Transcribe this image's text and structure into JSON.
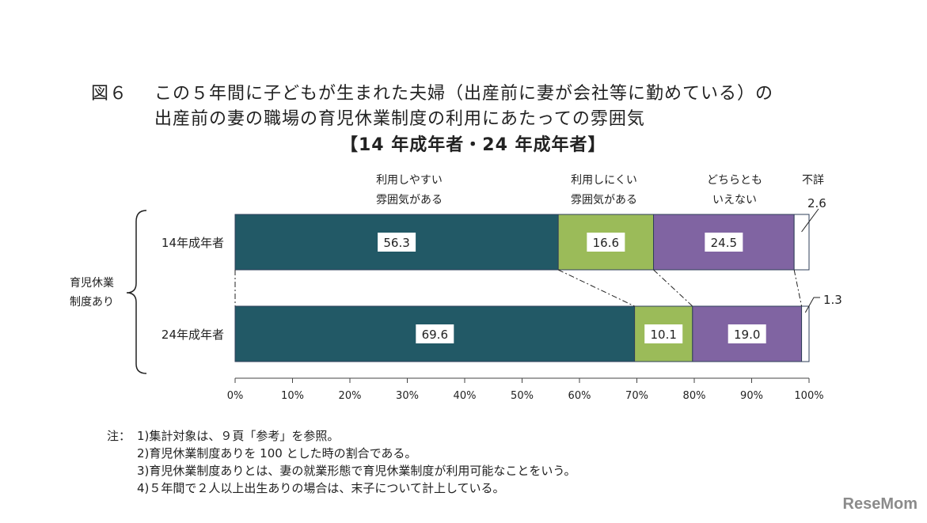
{
  "title": {
    "fig_label": "図６",
    "line1": "この５年間に子どもが生まれた夫婦（出産前に妻が会社等に勤めている）の",
    "line2": "出産前の妻の職場の育児休業制度の利用にあたっての雰囲気",
    "line3": "【14 年成年者・24 年成年者】"
  },
  "chart_data": {
    "type": "bar",
    "orientation": "horizontal",
    "stacked": true,
    "group_label": [
      "育児休業",
      "制度あり"
    ],
    "categories": [
      "14年成年者",
      "24年成年者"
    ],
    "series": [
      {
        "name": "利用しやすい雰囲気がある",
        "name_lines": [
          "利用しやすい",
          "雰囲気がある"
        ],
        "color": "#225966",
        "values": [
          56.3,
          69.6
        ],
        "labels": [
          "56.3",
          "69.6"
        ]
      },
      {
        "name": "利用しにくい雰囲気がある",
        "name_lines": [
          "利用しにくい",
          "雰囲気がある"
        ],
        "color": "#9bbb59",
        "values": [
          16.6,
          10.1
        ],
        "labels": [
          "16.6",
          "10.1"
        ]
      },
      {
        "name": "どちらともいえない",
        "name_lines": [
          "どちらとも",
          "いえない"
        ],
        "color": "#8064a2",
        "values": [
          24.5,
          19.0
        ],
        "labels": [
          "24.5",
          "19.0"
        ]
      },
      {
        "name": "不詳",
        "name_lines": [
          "不詳"
        ],
        "color": "#ffffff",
        "values": [
          2.6,
          1.3
        ],
        "labels": [
          "2.6",
          "1.3"
        ]
      }
    ],
    "xlim": [
      0,
      100
    ],
    "x_ticks": [
      "0%",
      "10%",
      "20%",
      "30%",
      "40%",
      "50%",
      "60%",
      "70%",
      "80%",
      "90%",
      "100%"
    ],
    "grid": false,
    "legend": "top"
  },
  "notes": {
    "prefix": "注：",
    "items": [
      "1)集計対象は、９頁「参考」を参照。",
      "2)育児休業制度ありを 100 とした時の割合である。",
      "3)育児休業制度ありとは、妻の就業形態で育児休業制度が利用可能なことをいう。",
      "4)５年間で２人以上出生ありの場合は、末子について計上している。"
    ]
  },
  "watermark": "ReseMom",
  "colors": {
    "edge": "#2f3f5a",
    "text": "#222222"
  }
}
